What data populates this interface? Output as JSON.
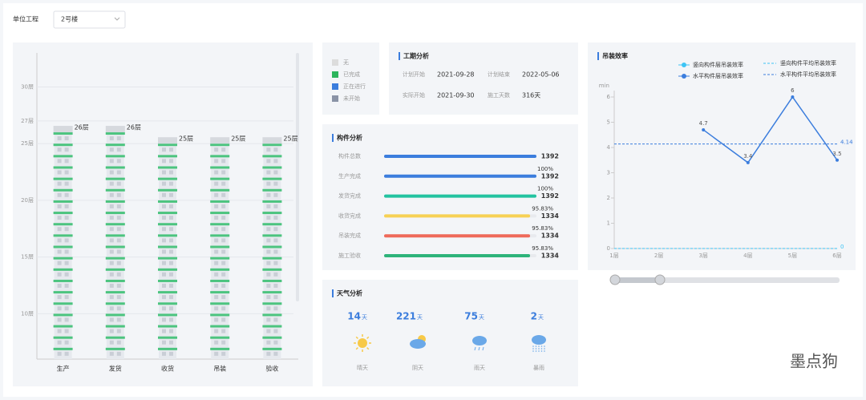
{
  "header": {
    "unit_label": "单位工程",
    "unit_value": "2号楼"
  },
  "legend": {
    "items": [
      {
        "label": "无",
        "color": "#dcdcdc"
      },
      {
        "label": "已完成",
        "color": "#2db55d"
      },
      {
        "label": "正在进行",
        "color": "#3b7ddd"
      },
      {
        "label": "未开始",
        "color": "#8a93a6"
      }
    ]
  },
  "floor_chart": {
    "type": "bar",
    "categories": [
      "生产",
      "发货",
      "收货",
      "吊装",
      "验收"
    ],
    "values": [
      26,
      26,
      25,
      25,
      25
    ],
    "value_labels": [
      "26层",
      "26层",
      "25层",
      "25层",
      "25层"
    ],
    "ylim": [
      6,
      33
    ],
    "yticks": [
      {
        "value": 10,
        "label": "10层"
      },
      {
        "value": 15,
        "label": "15层"
      },
      {
        "value": 20,
        "label": "20层"
      },
      {
        "value": 25,
        "label": "25层"
      },
      {
        "value": 27,
        "label": "27层"
      },
      {
        "value": 30,
        "label": "30层"
      }
    ],
    "color": "#4cc47f"
  },
  "schedule": {
    "title": "工期分析",
    "items": [
      {
        "label": "计划开始",
        "value": "2021-09-28"
      },
      {
        "label": "计划结束",
        "value": "2022-05-06"
      },
      {
        "label": "实际开始",
        "value": "2021-09-30"
      },
      {
        "label": "施工天数",
        "value": "316天"
      }
    ]
  },
  "components": {
    "title": "构件分析",
    "rows": [
      {
        "label": "构件总数",
        "count": 1392,
        "color": "#3b7ddd"
      },
      {
        "label": "生产完成",
        "count": 1392,
        "percent": {
          "value": 100,
          "label": "100%"
        },
        "color": "#3b7ddd"
      },
      {
        "label": "发货完成",
        "count": 1392,
        "percent": {
          "value": 100,
          "label": "100%"
        },
        "color": "#22c3a0"
      },
      {
        "label": "收货完成",
        "count": 1334,
        "percent": {
          "value": 95.83,
          "label": "95.83%"
        },
        "color": "#f7d154"
      },
      {
        "label": "吊装完成",
        "count": 1334,
        "percent": {
          "value": 95.83,
          "label": "95.83%"
        },
        "color": "#ef6a5a"
      },
      {
        "label": "施工验收",
        "count": 1334,
        "percent": {
          "value": 95.83,
          "label": "95.83%"
        },
        "color": "#2db37a"
      }
    ]
  },
  "weather": {
    "title": "天气分析",
    "unit": "天",
    "items": [
      {
        "days": 14,
        "label": "晴天"
      },
      {
        "days": 221,
        "label": "阴天"
      },
      {
        "days": 75,
        "label": "雨天"
      },
      {
        "days": 2,
        "label": "暴雨"
      }
    ]
  },
  "efficiency_chart": {
    "type": "line",
    "title": "吊装效率",
    "y_label": "min",
    "categories": [
      "1层",
      "2层",
      "3层",
      "4层",
      "5层",
      "6层"
    ],
    "series": [
      {
        "name": "竖向构件层吊装效率",
        "color": "#3cc4f5",
        "values": [
          null,
          null,
          null,
          null,
          null,
          null
        ]
      },
      {
        "name": "水平构件层吊装效率",
        "color": "#3b7ddd",
        "values": [
          null,
          null,
          4.7,
          3.4,
          6,
          3.5
        ]
      }
    ],
    "averages": [
      {
        "name": "竖向构件平均吊装效率",
        "color": "#3cc4f5",
        "value": 0
      },
      {
        "name": "水平构件平均吊装效率",
        "color": "#3b7ddd",
        "value": 4.14
      }
    ],
    "ylim": [
      0,
      6
    ],
    "yticks": [
      0,
      1,
      2,
      3,
      4,
      5,
      6
    ]
  },
  "watermark": {
    "text": "墨点狗"
  }
}
